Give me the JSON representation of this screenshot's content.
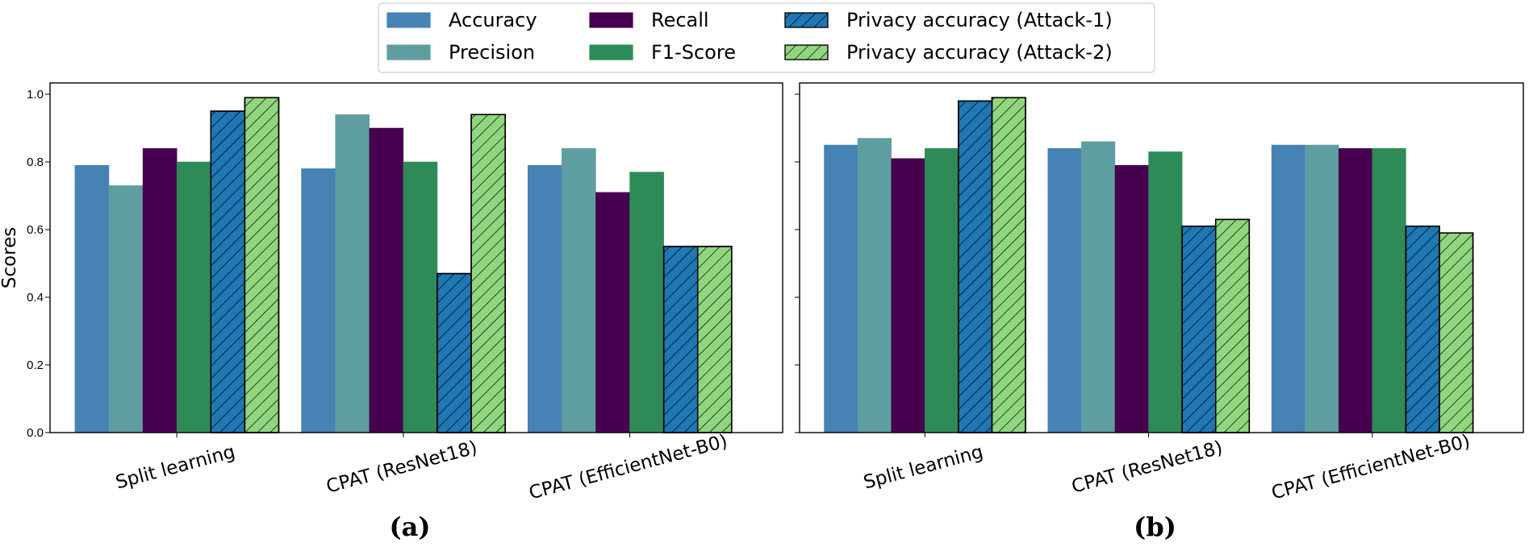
{
  "chart_data": [
    {
      "type": "bar",
      "panel_label": "(a)",
      "ylabel": "Scores",
      "ylim": [
        0,
        1.04
      ],
      "yticks": [
        "0.0",
        "0.2",
        "0.4",
        "0.6",
        "0.8",
        "1.0"
      ],
      "categories": [
        "Split learning",
        "CPAT (ResNet18)",
        "CPAT (EfficientNet-B0)"
      ],
      "series": [
        {
          "name": "Accuracy",
          "values": [
            0.79,
            0.78,
            0.79
          ]
        },
        {
          "name": "Precision",
          "values": [
            0.73,
            0.94,
            0.84
          ]
        },
        {
          "name": "Recall",
          "values": [
            0.84,
            0.9,
            0.71
          ]
        },
        {
          "name": "F1-Score",
          "values": [
            0.8,
            0.8,
            0.77
          ]
        },
        {
          "name": "Privacy accuracy (Attack-1)",
          "values": [
            0.95,
            0.47,
            0.55
          ]
        },
        {
          "name": "Privacy accuracy (Attack-2)",
          "values": [
            0.99,
            0.94,
            0.55
          ]
        }
      ]
    },
    {
      "type": "bar",
      "panel_label": "(b)",
      "ylim": [
        0,
        1.04
      ],
      "categories": [
        "Split learning",
        "CPAT (ResNet18)",
        "CPAT (EfficientNet-B0)"
      ],
      "series": [
        {
          "name": "Accuracy",
          "values": [
            0.85,
            0.84,
            0.85
          ]
        },
        {
          "name": "Precision",
          "values": [
            0.87,
            0.86,
            0.85
          ]
        },
        {
          "name": "Recall",
          "values": [
            0.81,
            0.79,
            0.84
          ]
        },
        {
          "name": "F1-Score",
          "values": [
            0.84,
            0.83,
            0.84
          ]
        },
        {
          "name": "Privacy accuracy (Attack-1)",
          "values": [
            0.98,
            0.61,
            0.61
          ]
        },
        {
          "name": "Privacy accuracy (Attack-2)",
          "values": [
            0.99,
            0.63,
            0.59
          ]
        }
      ]
    }
  ],
  "legend": {
    "placement": "top-center",
    "entries": [
      "Accuracy",
      "Precision",
      "Recall",
      "F1-Score",
      "Privacy accuracy (Attack-1)",
      "Privacy accuracy (Attack-2)"
    ]
  },
  "style": {
    "colors": [
      "#4682b4",
      "#5f9ea0",
      "#46004f",
      "#2e8b57",
      "#1f77b4",
      "#90d67f"
    ],
    "hatched": [
      false,
      false,
      false,
      false,
      true,
      true
    ]
  }
}
